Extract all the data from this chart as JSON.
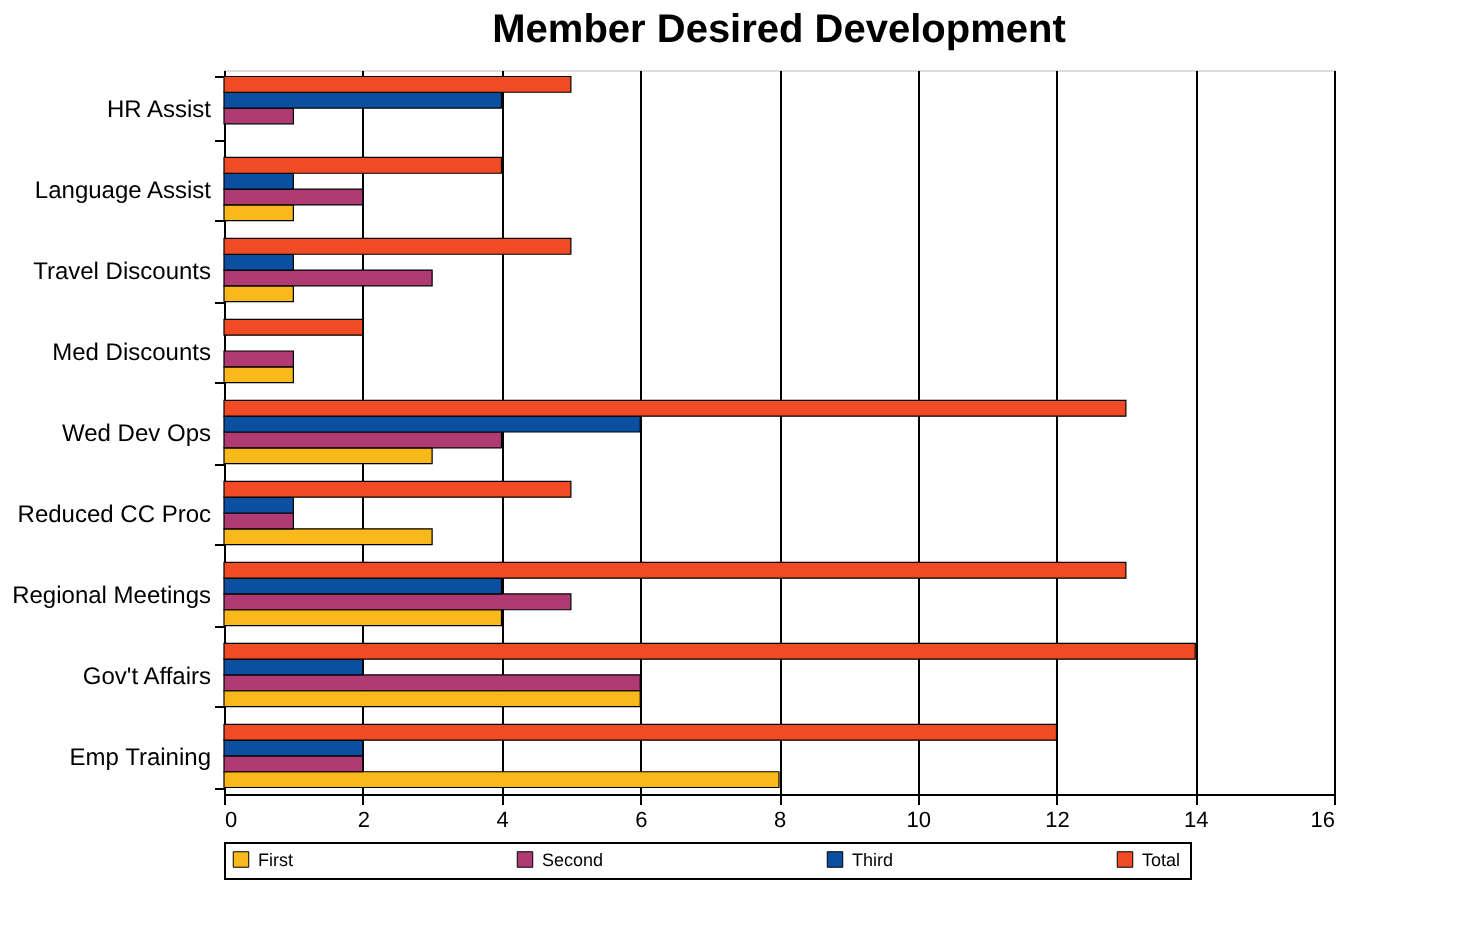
{
  "chart_data": {
    "type": "bar",
    "orientation": "horizontal",
    "title": "Member Desired Development",
    "categories": [
      "HR Assist",
      "Language Assist",
      "Travel Discounts",
      "Med Discounts",
      "Wed Dev Ops",
      "Reduced CC Proc",
      "Regional Meetings",
      "Gov't Affairs",
      "Emp Training"
    ],
    "series": [
      {
        "name": "First",
        "color": "#f9b91a",
        "values": [
          null,
          1,
          1,
          1,
          3,
          3,
          4,
          6,
          8
        ]
      },
      {
        "name": "Second",
        "color": "#b03a72",
        "values": [
          1,
          2,
          3,
          1,
          4,
          1,
          5,
          6,
          2
        ]
      },
      {
        "name": "Third",
        "color": "#0a4fa0",
        "values": [
          4,
          1,
          1,
          null,
          6,
          1,
          4,
          2,
          2
        ]
      },
      {
        "name": "Total",
        "color": "#f04b25",
        "values": [
          5,
          4,
          5,
          2,
          13,
          5,
          13,
          14,
          12
        ]
      }
    ],
    "xlim": [
      0,
      16
    ],
    "xticks": [
      0,
      2,
      4,
      6,
      8,
      10,
      12,
      14,
      16
    ],
    "grid": "x",
    "legend": "bottom"
  }
}
